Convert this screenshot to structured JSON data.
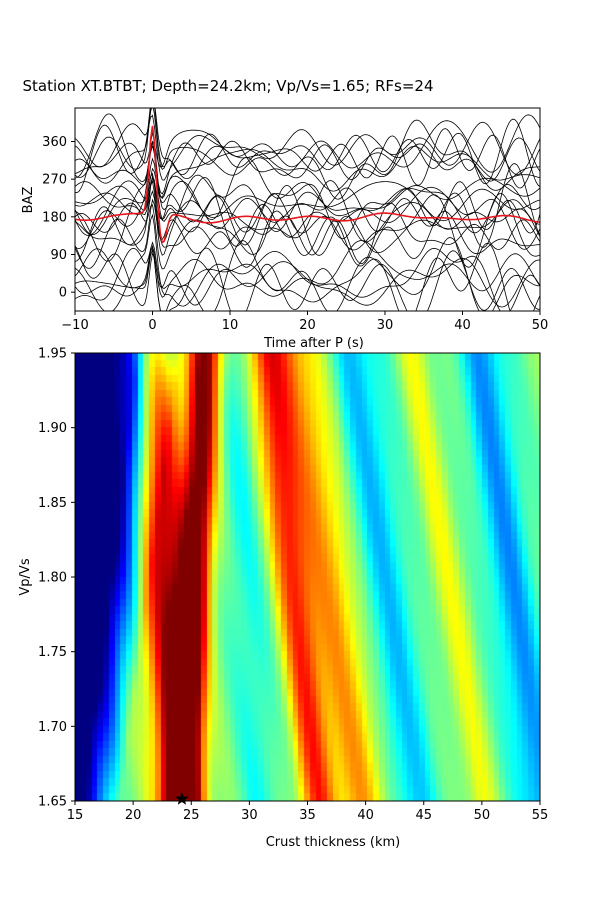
{
  "chart_data": [
    {
      "type": "line",
      "title": "Station XT.BTBT; Depth=24.2km; Vp/Vs=1.65; RFs=24",
      "xlabel": "Time after P (s)",
      "ylabel": "BAZ",
      "xlim": [
        -10,
        50
      ],
      "ylim": [
        -45,
        440
      ],
      "xticks": [
        "−10",
        "0",
        "10",
        "20",
        "30",
        "40",
        "50"
      ],
      "xtick_values": [
        -10,
        0,
        10,
        20,
        30,
        40,
        50
      ],
      "yticks": [
        "0",
        "90",
        "180",
        "270",
        "360"
      ],
      "ytick_values": [
        0,
        90,
        180,
        270,
        360
      ],
      "grid": false,
      "series": [
        {
          "color": "#000000",
          "baz": [
            12,
            20,
            26,
            30,
            36,
            42,
            125,
            138,
            150,
            162,
            178,
            188,
            196,
            204,
            212,
            220,
            232,
            298,
            306,
            314,
            322,
            330,
            338,
            346
          ],
          "peak": [
            0.8,
            0.7,
            0.8,
            0.6,
            0.75,
            0.7,
            0.8,
            0.6,
            0.7,
            0.8,
            0.9,
            1.0,
            0.8,
            0.7,
            0.9,
            0.6,
            0.7,
            0.8,
            0.9,
            0.7,
            1.0,
            0.8,
            0.6,
            0.7
          ]
        },
        {
          "color": "#e8171e",
          "baz": [
            178
          ],
          "peak": [
            1.6
          ],
          "note": ""
        }
      ]
    },
    {
      "type": "heatmap",
      "xlabel": "Crust thickness (km)",
      "ylabel": "Vp/Vs",
      "xlim": [
        15,
        55
      ],
      "ylim": [
        1.65,
        1.95
      ],
      "xticks": [
        "15",
        "20",
        "25",
        "30",
        "35",
        "40",
        "45",
        "50",
        "55"
      ],
      "xtick_values": [
        15,
        20,
        25,
        30,
        35,
        40,
        45,
        50,
        55
      ],
      "yticks": [
        "1.65",
        "1.70",
        "1.75",
        "1.80",
        "1.85",
        "1.90",
        "1.95"
      ],
      "ytick_values": [
        1.65,
        1.7,
        1.75,
        1.8,
        1.85,
        1.9,
        1.95
      ],
      "colormap": "jet",
      "ridges": [
        {
          "h_at_165": 24.0,
          "h_at_195": 21.5,
          "amp": 0.45,
          "width": 1.4
        },
        {
          "h_at_165": 24.3,
          "h_at_195": 26.3,
          "amp": 0.55,
          "width": 1.0,
          "note": ""
        },
        {
          "h_at_165": 36.0,
          "h_at_195": 31.5,
          "amp": 0.32,
          "width": 1.1
        },
        {
          "h_at_165": 40.0,
          "h_at_195": 34.0,
          "amp": 0.22,
          "width": 1.8
        },
        {
          "h_at_165": 50.0,
          "h_at_195": 44.0,
          "amp": 0.1,
          "width": 1.0
        }
      ],
      "troughs": [
        {
          "h_at_165": 31.0,
          "h_at_195": 28.5,
          "amp": 0.1,
          "width": 1.3
        },
        {
          "h_at_165": 44.0,
          "h_at_195": 39.0,
          "amp": 0.18,
          "width": 1.8
        },
        {
          "h_at_165": 55.0,
          "h_at_195": 50.0,
          "amp": 0.22,
          "width": 1.5
        }
      ],
      "best": {
        "h": 24.2,
        "vpvs": 1.65,
        "marker": "star"
      }
    }
  ]
}
